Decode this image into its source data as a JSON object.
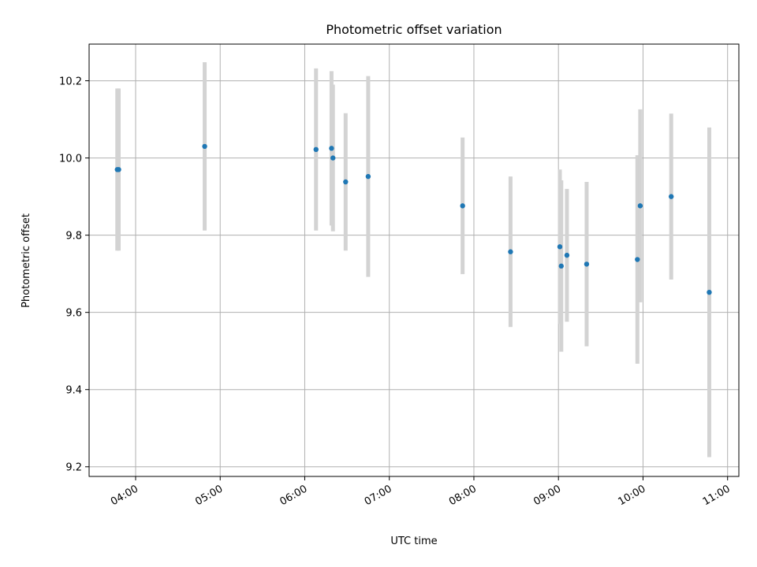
{
  "chart_data": {
    "type": "scatter",
    "title": "Photometric offset variation",
    "xlabel": "UTC time",
    "ylabel": "Photometric offset",
    "x_ticks": [
      "04:00",
      "05:00",
      "06:00",
      "07:00",
      "08:00",
      "09:00",
      "10:00",
      "11:00"
    ],
    "y_ticks": [
      "9.2",
      "9.4",
      "9.6",
      "9.8",
      "10.0",
      "10.2"
    ],
    "xlim": [
      "03:27",
      "11:08"
    ],
    "ylim": [
      9.175,
      10.295
    ],
    "grid": true,
    "series": [
      {
        "marker_color": "#1f77b4",
        "errorbar_color": "#d3d3d3",
        "points": [
          {
            "x": "03:47",
            "y": 9.97,
            "err": 0.21
          },
          {
            "x": "03:48",
            "y": 9.97,
            "err": 0.21
          },
          {
            "x": "04:49",
            "y": 10.03,
            "err": 0.218
          },
          {
            "x": "06:08",
            "y": 10.022,
            "err": 0.21
          },
          {
            "x": "06:19",
            "y": 10.025,
            "err": 0.2
          },
          {
            "x": "06:20",
            "y": 10.0,
            "err": 0.19
          },
          {
            "x": "06:29",
            "y": 9.938,
            "err": 0.178
          },
          {
            "x": "06:45",
            "y": 9.952,
            "err": 0.26
          },
          {
            "x": "07:52",
            "y": 9.876,
            "err": 0.177
          },
          {
            "x": "08:26",
            "y": 9.757,
            "err": 0.195
          },
          {
            "x": "09:01",
            "y": 9.77,
            "err": 0.2
          },
          {
            "x": "09:02",
            "y": 9.72,
            "err": 0.222
          },
          {
            "x": "09:06",
            "y": 9.748,
            "err": 0.172
          },
          {
            "x": "09:20",
            "y": 9.725,
            "err": 0.213
          },
          {
            "x": "09:56",
            "y": 9.737,
            "err": 0.27
          },
          {
            "x": "09:58",
            "y": 9.876,
            "err": 0.25
          },
          {
            "x": "10:20",
            "y": 9.9,
            "err": 0.215
          },
          {
            "x": "10:47",
            "y": 9.652,
            "err": 0.427
          }
        ]
      }
    ]
  }
}
